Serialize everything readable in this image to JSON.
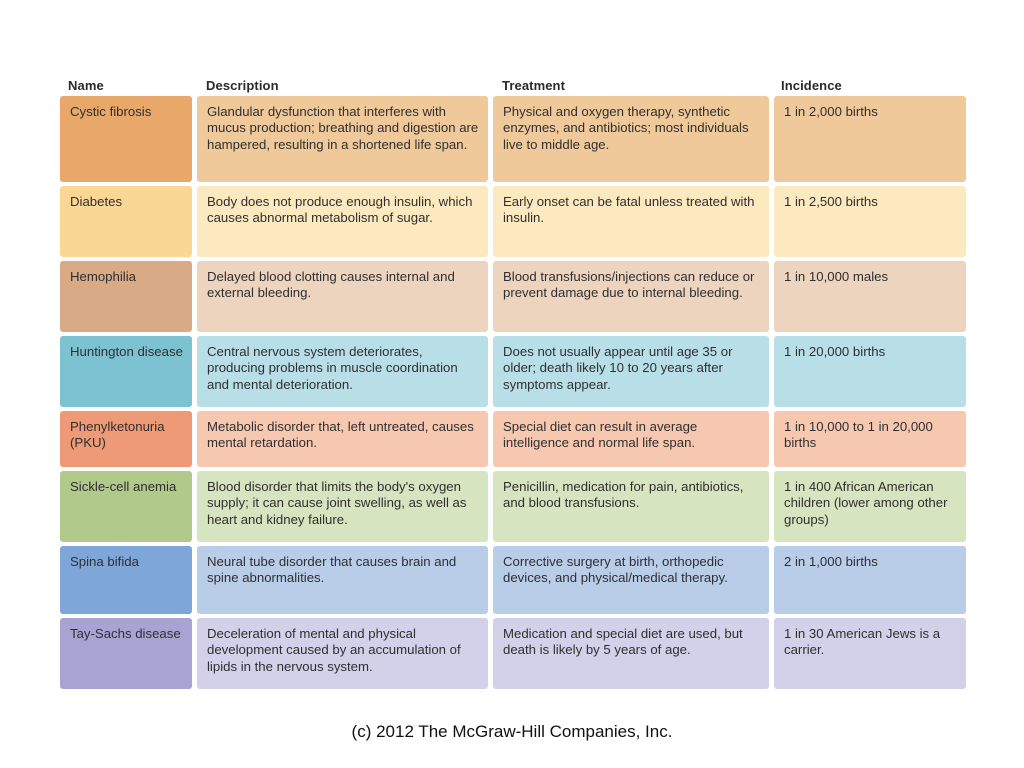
{
  "headers": {
    "name": "Name",
    "description": "Description",
    "treatment": "Treatment",
    "incidence": "Incidence"
  },
  "rows": [
    {
      "name": "Cystic fibrosis",
      "description": "Glandular dysfunction that interferes with mucus production; breathing and digestion are hampered, resulting in a shortened life span.",
      "treatment": "Physical and oxygen therapy, synthetic enzymes, and antibiotics; most individuals live to middle age.",
      "incidence": "1 in 2,000 births",
      "name_color": "#e8a86a",
      "cell_color": "#f0c99a"
    },
    {
      "name": "Diabetes",
      "description": "Body does not produce enough insulin, which causes abnormal metabolism of sugar.",
      "treatment": "Early onset can be fatal unless treated with insulin.",
      "incidence": "1 in 2,500 births",
      "name_color": "#fbd796",
      "cell_color": "#fde9bf"
    },
    {
      "name": "Hemophilia",
      "description": "Delayed blood clotting causes internal and external bleeding.",
      "treatment": "Blood transfusions/injections can reduce or prevent damage due to internal bleeding.",
      "incidence": "1 in 10,000 males",
      "name_color": "#d9aa86",
      "cell_color": "#ecd4bf"
    },
    {
      "name": "Huntington disease",
      "description": "Central nervous system deteriorates, producing problems in muscle coordination and mental deterioration.",
      "treatment": "Does not usually appear until age 35 or older; death likely 10 to 20 years after symptoms appear.",
      "incidence": "1 in 20,000 births",
      "name_color": "#7cc2d1",
      "cell_color": "#b8dfe7"
    },
    {
      "name": "Phenylketonuria (PKU)",
      "description": "Metabolic disorder that, left untreated, causes mental retardation.",
      "treatment": "Special diet can result in average intelligence and normal life span.",
      "incidence": "1 in 10,000  to 1 in 20,000 births",
      "name_color": "#ee9a76",
      "cell_color": "#f7c8b0"
    },
    {
      "name": "Sickle-cell anemia",
      "description": "Blood disorder that limits the body's oxygen supply; it can cause joint swelling, as well as heart and kidney failure.",
      "treatment": "Penicillin, medication for pain, antibiotics, and blood transfusions.",
      "incidence": "1 in 400 African American children (lower among other groups)",
      "name_color": "#b1c98a",
      "cell_color": "#d6e4bf"
    },
    {
      "name": "Spina bifida",
      "description": "Neural tube disorder that causes brain and spine abnormalities.",
      "treatment": "Corrective surgery at birth, orthopedic devices, and physical/medical therapy.",
      "incidence": "2 in 1,000 births",
      "name_color": "#7ea6d8",
      "cell_color": "#b9cde9"
    },
    {
      "name": "Tay-Sachs disease",
      "description": "Deceleration of mental and physical development caused by an accumulation of lipids in the nervous system.",
      "treatment": "Medication and special diet are used, but death is likely by 5 years of age.",
      "incidence": "1 in 30 American Jews is a carrier.",
      "name_color": "#a8a3d3",
      "cell_color": "#d3d0e9"
    }
  ],
  "footer": "(c) 2012 The McGraw-Hill Companies, Inc."
}
